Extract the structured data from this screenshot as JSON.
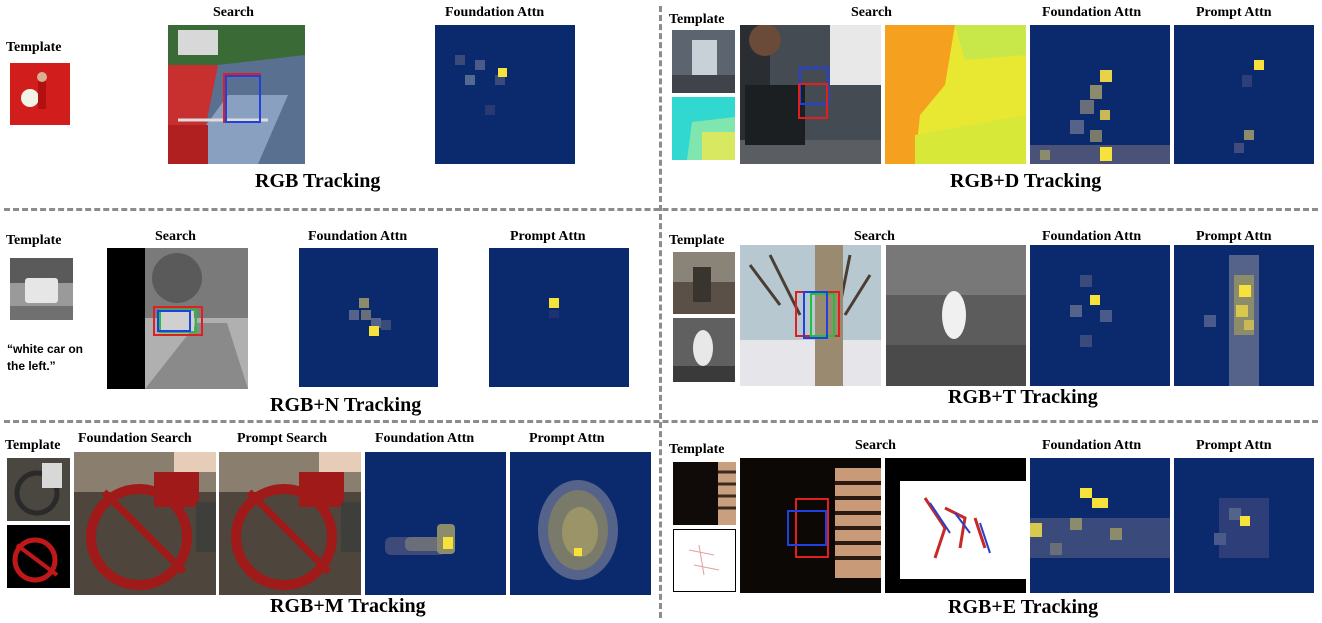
{
  "labels": {
    "template": "Template",
    "search": "Search",
    "foundation_attn": "Foundation Attn",
    "prompt_attn": "Prompt Attn",
    "foundation_search": "Foundation Search",
    "prompt_search": "Prompt Search"
  },
  "sections": {
    "rgb": {
      "title": "RGB Tracking"
    },
    "rgbd": {
      "title": "RGB+D Tracking"
    },
    "rgbn": {
      "title": "RGB+N Tracking",
      "prompt_text": "“white car on the left.”"
    },
    "rgbt": {
      "title": "RGB+T Tracking"
    },
    "rgbm": {
      "title": "RGB+M Tracking"
    },
    "rgbe": {
      "title": "RGB+E Tracking"
    }
  },
  "colors": {
    "heat_background": "#0b2a6e",
    "heat_hot": "#f6e23a",
    "heat_mid": "#8c8b6b",
    "box_red": "#e02020",
    "box_blue": "#2040e0",
    "box_green": "#20c040",
    "divider": "#8c8c8c"
  }
}
